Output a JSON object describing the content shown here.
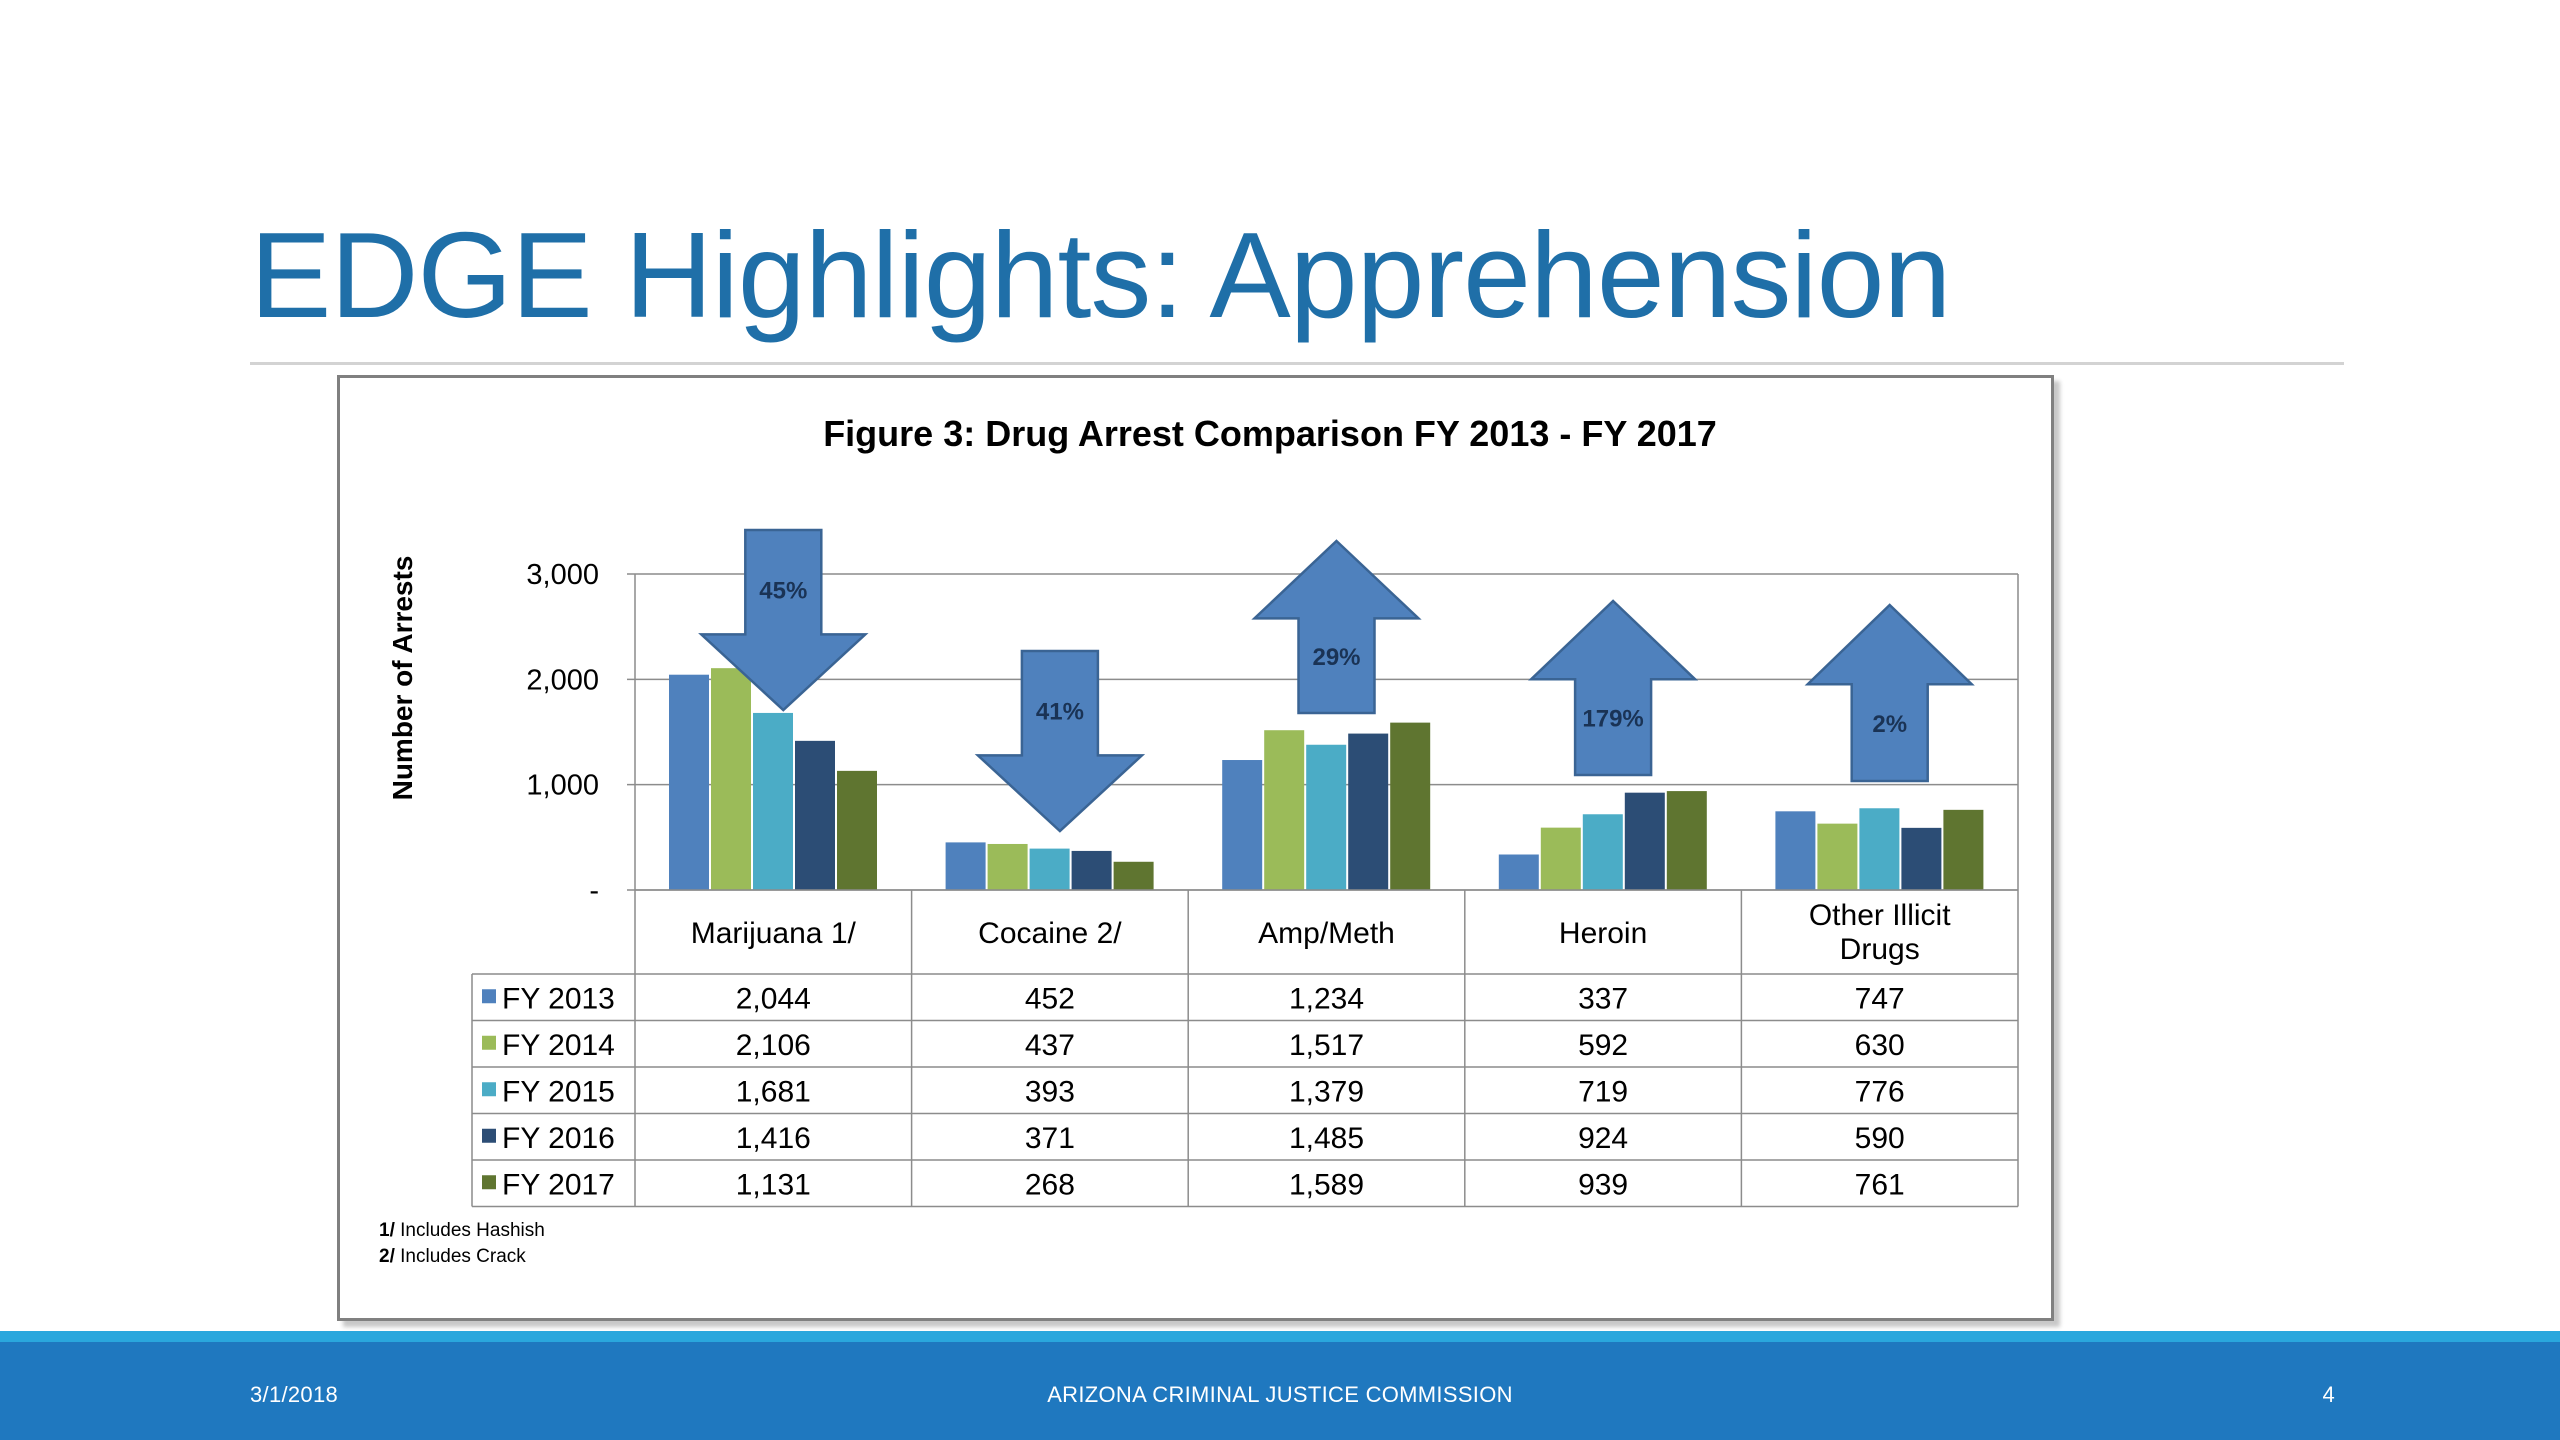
{
  "slide": {
    "title": "EDGE Highlights: Apprehension"
  },
  "footer": {
    "date": "3/1/2018",
    "organization": "ARIZONA CRIMINAL JUSTICE COMMISSION",
    "page": "4"
  },
  "chart_data": {
    "type": "bar",
    "title": "Figure 3: Drug Arrest Comparison FY 2013 - FY 2017",
    "ylabel": "Number of Arrests",
    "xlabel": "",
    "ylim": [
      0,
      3000
    ],
    "yticks": [
      0,
      1000,
      2000,
      3000
    ],
    "ytick_labels": [
      "-",
      "1,000",
      "2,000",
      "3,000"
    ],
    "grid": true,
    "categories": [
      "Marijuana 1/",
      "Cocaine 2/",
      "Amp/Meth",
      "Heroin",
      "Other Illicit Drugs"
    ],
    "series": [
      {
        "name": "FY 2013",
        "color": "#4f81bd",
        "values": [
          2044,
          452,
          1234,
          337,
          747
        ],
        "labels": [
          "2,044",
          "452",
          "1,234",
          "337",
          "747"
        ]
      },
      {
        "name": "FY 2014",
        "color": "#9bbb59",
        "values": [
          2106,
          437,
          1517,
          592,
          630
        ],
        "labels": [
          "2,106",
          "437",
          "1,517",
          "592",
          "630"
        ]
      },
      {
        "name": "FY 2015",
        "color": "#4bacc6",
        "values": [
          1681,
          393,
          1379,
          719,
          776
        ],
        "labels": [
          "1,681",
          "393",
          "1,379",
          "719",
          "776"
        ]
      },
      {
        "name": "FY 2016",
        "color": "#2c4d75",
        "values": [
          1416,
          371,
          1485,
          924,
          590
        ],
        "labels": [
          "1,416",
          "371",
          "1,485",
          "924",
          "590"
        ]
      },
      {
        "name": "FY 2017",
        "color": "#5f7530",
        "values": [
          1131,
          268,
          1589,
          939,
          761
        ],
        "labels": [
          "1,131",
          "268",
          "1,589",
          "939",
          "761"
        ]
      }
    ],
    "change_arrows": [
      {
        "category": "Marijuana 1/",
        "direction": "down",
        "label": "45%"
      },
      {
        "category": "Cocaine 2/",
        "direction": "down",
        "label": "41%"
      },
      {
        "category": "Amp/Meth",
        "direction": "up",
        "label": "29%"
      },
      {
        "category": "Heroin",
        "direction": "up",
        "label": "179%"
      },
      {
        "category": "Other Illicit Drugs",
        "direction": "up",
        "label": "2%"
      }
    ],
    "arrow_color": "#4f81bd",
    "footnotes": [
      {
        "marker": "1/",
        "text": "Includes Hashish"
      },
      {
        "marker": "2/",
        "text": "Includes Crack"
      }
    ]
  }
}
